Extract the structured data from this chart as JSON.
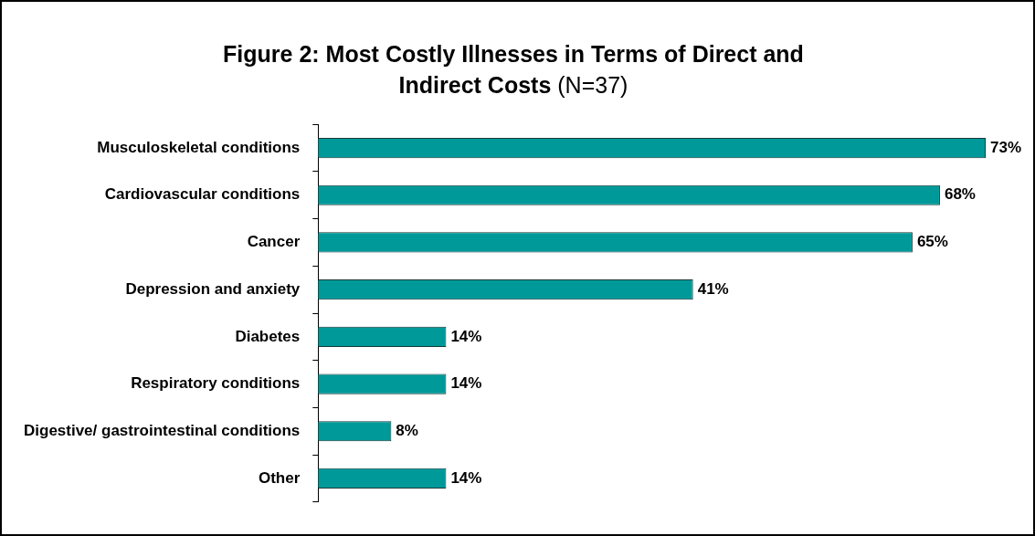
{
  "chart_data": {
    "type": "bar",
    "orientation": "horizontal",
    "title": "Figure 2: Most Costly Illnesses in Terms of Direct and Indirect Costs",
    "subtitle": "(N=37)",
    "categories": [
      "Musculoskeletal conditions",
      "Cardiovascular conditions",
      "Cancer",
      "Depression and anxiety",
      "Diabetes",
      "Respiratory conditions",
      "Digestive/ gastrointestinal conditions",
      "Other"
    ],
    "values": [
      73,
      68,
      65,
      41,
      14,
      14,
      8,
      14
    ],
    "value_labels": [
      "73%",
      "68%",
      "65%",
      "41%",
      "14%",
      "14%",
      "8%",
      "14%"
    ],
    "color": "#009999",
    "grid": false,
    "legend": false
  }
}
